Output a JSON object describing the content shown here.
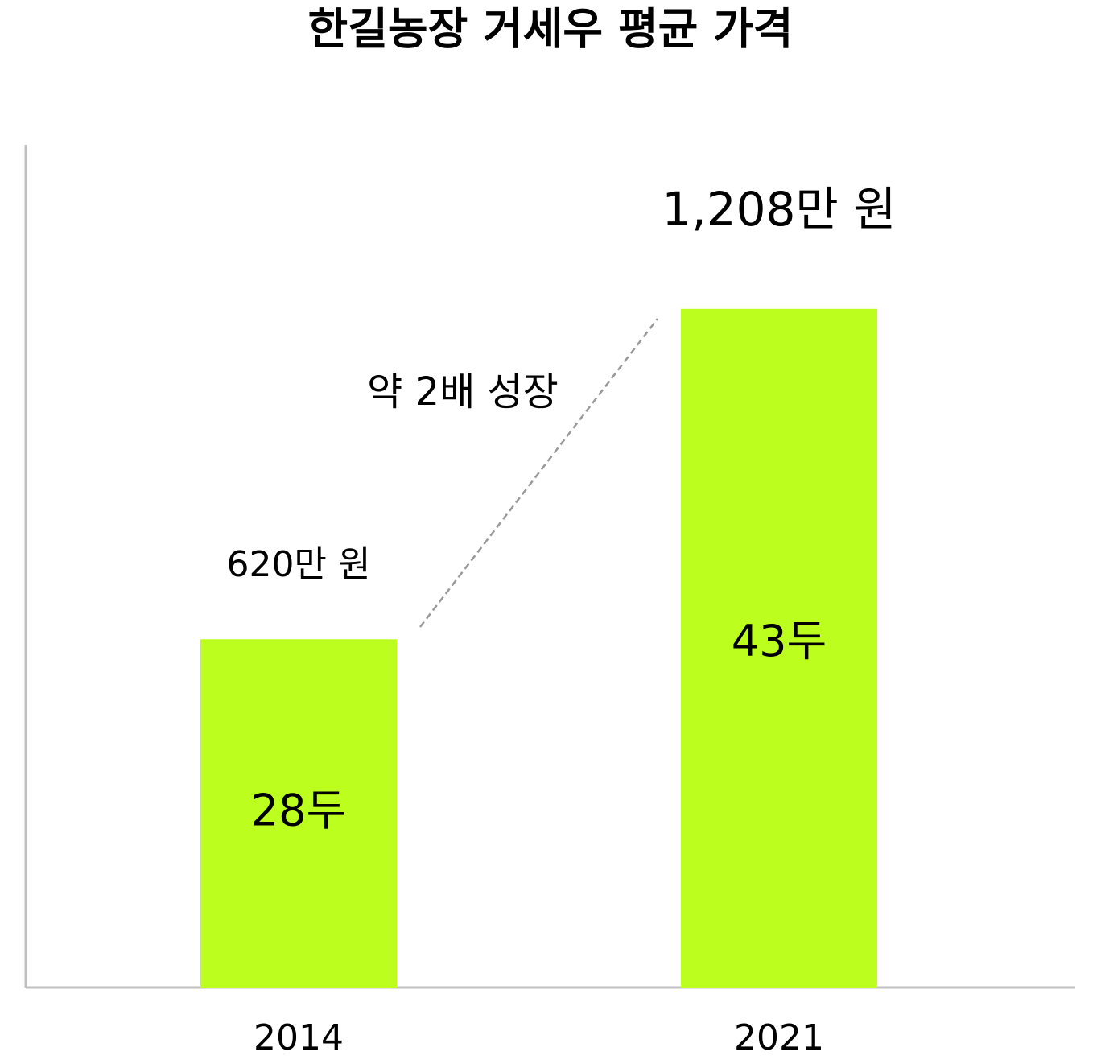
{
  "chart_data": {
    "type": "bar",
    "title": "한길농장 거세우 평균  가격",
    "categories": [
      "2014",
      "2021"
    ],
    "values": [
      620,
      1208
    ],
    "value_labels": [
      "620만 원",
      "1,208만 원"
    ],
    "bar_labels": [
      "28두",
      "43두"
    ],
    "annotation": "약 2배 성장",
    "color": "#bcff1e",
    "ylim": [
      0,
      1500
    ]
  }
}
